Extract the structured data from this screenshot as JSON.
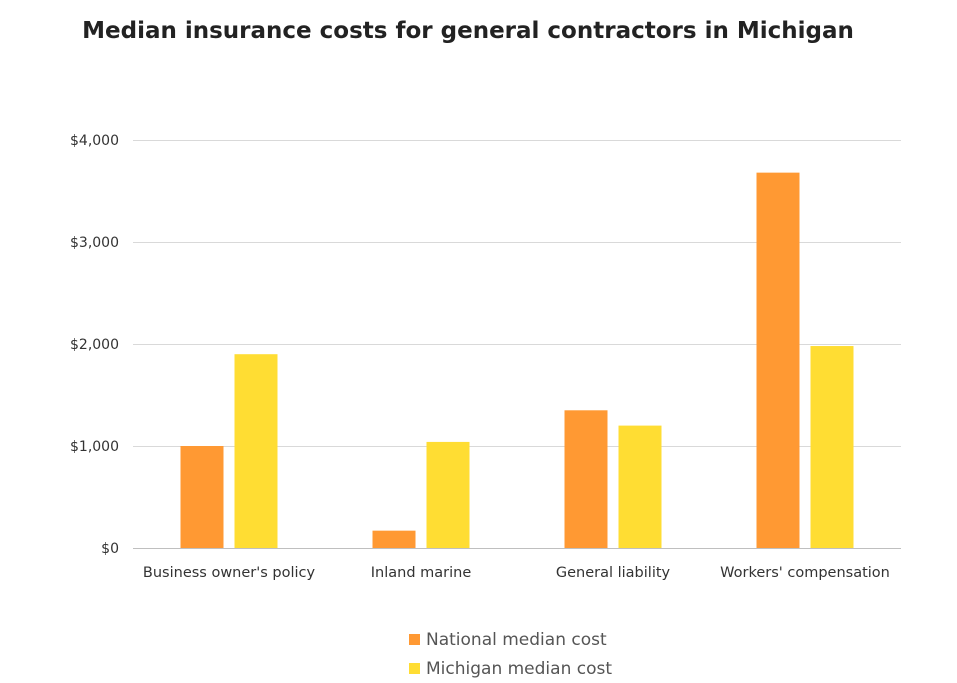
{
  "chart_data": {
    "type": "bar",
    "title": "Median insurance costs for general contractors in Michigan",
    "categories": [
      "Business owner's policy",
      "Inland marine",
      "General liability",
      "Workers' compensation"
    ],
    "series": [
      {
        "name": "National median cost",
        "color": "#ff9933",
        "values": [
          1000,
          170,
          1350,
          3680
        ]
      },
      {
        "name": "Michigan median cost",
        "color": "#ffdd33",
        "values": [
          1900,
          1040,
          1200,
          1980
        ]
      }
    ],
    "yticks": [
      "$0",
      "$1,000",
      "$2,000",
      "$3,000",
      "$4,000"
    ],
    "ytick_values": [
      0,
      1000,
      2000,
      3000,
      4000
    ],
    "ylim": [
      0,
      4000
    ],
    "grid": true,
    "legend_position": "bottom",
    "xlabel": "",
    "ylabel": ""
  }
}
